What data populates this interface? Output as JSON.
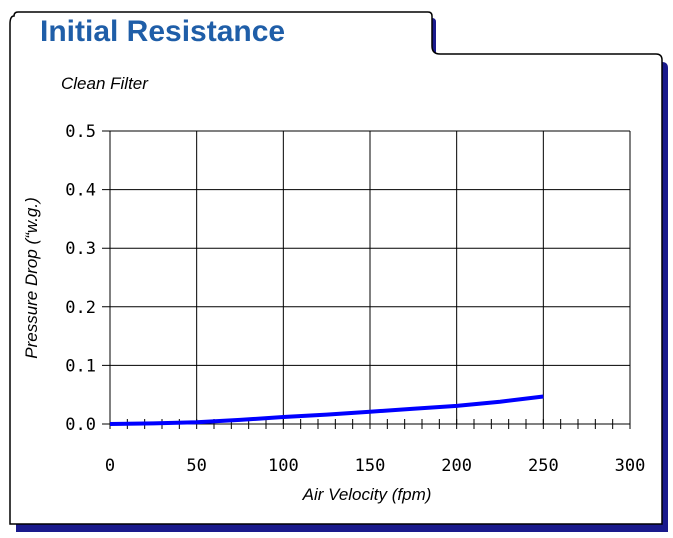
{
  "chart_data": {
    "type": "line",
    "title": "Initial Resistance",
    "subtitle": "Clean Filter",
    "xlabel": "Air Velocity (fpm)",
    "ylabel": "Pressure Drop (“w.g.)",
    "xlim": [
      0,
      300
    ],
    "ylim": [
      0,
      0.5
    ],
    "x_ticks": [
      "0",
      "50",
      "100",
      "150",
      "200",
      "250",
      "300"
    ],
    "y_ticks": [
      "0.0",
      "0.1",
      "0.2",
      "0.3",
      "0.4",
      "0.5"
    ],
    "grid": true,
    "series": [
      {
        "color": "#0000ff",
        "x": [
          0,
          25,
          50,
          75,
          100,
          125,
          150,
          175,
          200,
          225,
          250
        ],
        "y": [
          0.0,
          0.001,
          0.003,
          0.007,
          0.012,
          0.016,
          0.021,
          0.026,
          0.031,
          0.038,
          0.047
        ]
      }
    ]
  },
  "colors": {
    "title": "#1f5ea8",
    "frame_shadow": "#1a1a8c",
    "line": "#0000ff"
  }
}
